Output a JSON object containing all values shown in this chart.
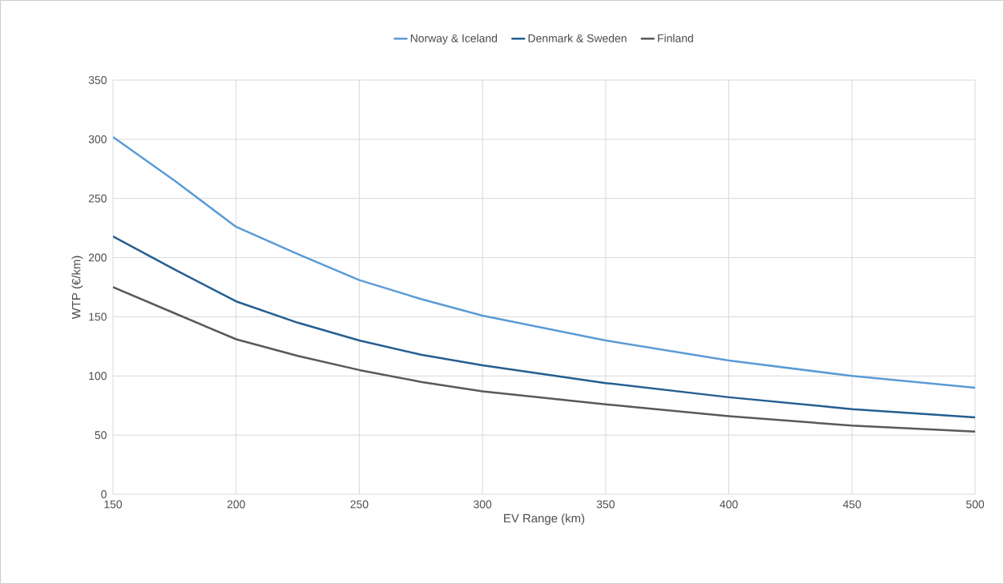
{
  "chart_data": {
    "type": "line",
    "xlabel": "EV Range (km)",
    "ylabel": "WTP (€/km)",
    "x": [
      150,
      175,
      200,
      225,
      250,
      275,
      300,
      350,
      400,
      450,
      500
    ],
    "series": [
      {
        "name": "Norway & Iceland",
        "color": "#5b9bd5",
        "values": [
          302,
          265,
          226,
          203,
          181,
          165,
          151,
          130,
          113,
          100,
          90
        ]
      },
      {
        "name": "Denmark & Sweden",
        "color": "#255e91",
        "values": [
          218,
          190,
          163,
          145,
          130,
          118,
          109,
          94,
          82,
          72,
          65
        ]
      },
      {
        "name": "Finland",
        "color": "#595959",
        "values": [
          175,
          153,
          131,
          117,
          105,
          95,
          87,
          76,
          66,
          58,
          53
        ]
      }
    ],
    "xlim": [
      150,
      500
    ],
    "ylim": [
      0,
      350
    ],
    "xticks": [
      150,
      200,
      250,
      300,
      350,
      400,
      450,
      500
    ],
    "yticks": [
      0,
      50,
      100,
      150,
      200,
      250,
      300,
      350
    ],
    "grid": true,
    "legend": "top",
    "marker": "none",
    "line_style": "solid"
  }
}
